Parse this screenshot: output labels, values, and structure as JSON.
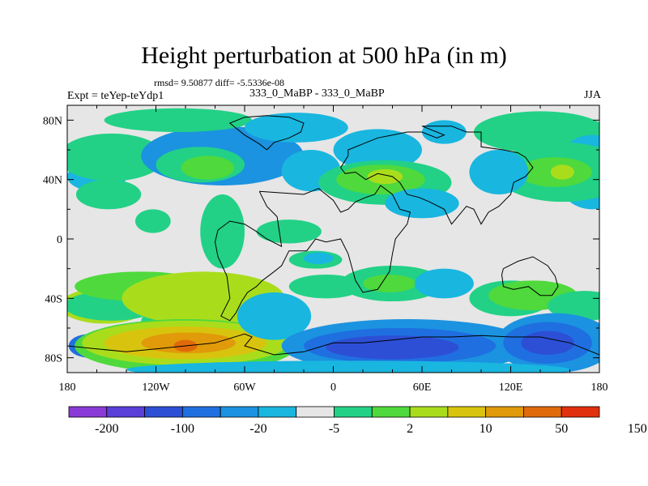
{
  "header": {
    "title": "Height perturbation at 500 hPa (in m)",
    "stats": "rmsd= 9.50877 diff= -5.5336e-08",
    "left_label": "Expt = teYep-teYdp1",
    "center_label": "333_0_MaBP - 333_0_MaBP",
    "right_label": "JJA"
  },
  "chart_data": {
    "type": "heatmap",
    "title": "Height perturbation at 500 hPa (in m)",
    "xlabel": "",
    "ylabel": "",
    "x_ticks": [
      "180",
      "120W",
      "60W",
      "0",
      "60E",
      "120E",
      "180"
    ],
    "x_tick_values": [
      -180,
      -120,
      -60,
      0,
      60,
      120,
      180
    ],
    "y_ticks": [
      "80N",
      "40N",
      "0",
      "40S",
      "80S"
    ],
    "y_tick_values": [
      80,
      40,
      0,
      -40,
      -80
    ],
    "xlim": [
      -180,
      180
    ],
    "ylim": [
      -90,
      90
    ],
    "colorbar": {
      "levels": [
        "-200",
        "-100",
        "-20",
        "-5",
        "2",
        "10",
        "50",
        "150"
      ],
      "colors": [
        "#8a3ad6",
        "#5a3fd9",
        "#2d4fd6",
        "#1f6fe0",
        "#1b93e0",
        "#19b6e0",
        "#e6e6e6",
        "#22d186",
        "#4fd93c",
        "#a9dd1c",
        "#d8c40e",
        "#e09a0a",
        "#e06a0a",
        "#e0300e"
      ]
    },
    "fields": [
      {
        "cx": -165,
        "cy": -72,
        "rx": 14,
        "ry": 8,
        "level": 3
      },
      {
        "cx": -160,
        "cy": 42,
        "rx": 20,
        "ry": 10,
        "level": 5
      },
      {
        "cx": -152,
        "cy": 30,
        "rx": 22,
        "ry": 10,
        "level": 7
      },
      {
        "cx": -150,
        "cy": 55,
        "rx": 36,
        "ry": 16,
        "level": 7
      },
      {
        "cx": -155,
        "cy": -45,
        "rx": 30,
        "ry": 12,
        "level": 9
      },
      {
        "cx": -150,
        "cy": -45,
        "rx": 32,
        "ry": 10,
        "level": 7
      },
      {
        "cx": -90,
        "cy": -55,
        "rx": 40,
        "ry": 10,
        "level": 7
      },
      {
        "cx": -130,
        "cy": -32,
        "rx": 45,
        "ry": 10,
        "level": 8
      },
      {
        "cx": -88,
        "cy": -40,
        "rx": 55,
        "ry": 18,
        "level": 9
      },
      {
        "cx": -100,
        "cy": -72,
        "rx": 75,
        "ry": 18,
        "level": 8
      },
      {
        "cx": -100,
        "cy": -70,
        "rx": 70,
        "ry": 15,
        "level": 9
      },
      {
        "cx": -100,
        "cy": -70,
        "rx": 55,
        "ry": 11,
        "level": 10
      },
      {
        "cx": -98,
        "cy": -70,
        "rx": 32,
        "ry": 7,
        "level": 11
      },
      {
        "cx": -100,
        "cy": -72,
        "rx": 8,
        "ry": 4,
        "level": 12
      },
      {
        "cx": -40,
        "cy": -52,
        "rx": 25,
        "ry": 16,
        "level": 5
      },
      {
        "cx": -75,
        "cy": 56,
        "rx": 55,
        "ry": 20,
        "level": 4
      },
      {
        "cx": -90,
        "cy": 50,
        "rx": 30,
        "ry": 12,
        "level": 7
      },
      {
        "cx": -85,
        "cy": 48,
        "rx": 18,
        "ry": 8,
        "level": 8
      },
      {
        "cx": -105,
        "cy": 80,
        "rx": 50,
        "ry": 8,
        "level": 7
      },
      {
        "cx": -25,
        "cy": 75,
        "rx": 35,
        "ry": 10,
        "level": 5
      },
      {
        "cx": -15,
        "cy": 46,
        "rx": 20,
        "ry": 14,
        "level": 5
      },
      {
        "cx": -122,
        "cy": 12,
        "rx": 12,
        "ry": 8,
        "level": 7
      },
      {
        "cx": -75,
        "cy": 5,
        "rx": 15,
        "ry": 25,
        "level": 7
      },
      {
        "cx": -30,
        "cy": 5,
        "rx": 22,
        "ry": 8,
        "level": 7
      },
      {
        "cx": -12,
        "cy": -14,
        "rx": 18,
        "ry": 6,
        "level": 7
      },
      {
        "cx": -10,
        "cy": -13,
        "rx": 10,
        "ry": 4,
        "level": 5
      },
      {
        "cx": 30,
        "cy": 60,
        "rx": 30,
        "ry": 14,
        "level": 5
      },
      {
        "cx": 35,
        "cy": 38,
        "rx": 45,
        "ry": 15,
        "level": 7
      },
      {
        "cx": 32,
        "cy": 40,
        "rx": 30,
        "ry": 10,
        "level": 8
      },
      {
        "cx": 35,
        "cy": 42,
        "rx": 12,
        "ry": 5,
        "level": 9
      },
      {
        "cx": 60,
        "cy": 24,
        "rx": 25,
        "ry": 10,
        "level": 5
      },
      {
        "cx": 75,
        "cy": 72,
        "rx": 15,
        "ry": 8,
        "level": 5
      },
      {
        "cx": 140,
        "cy": 72,
        "rx": 45,
        "ry": 14,
        "level": 7
      },
      {
        "cx": 175,
        "cy": 45,
        "rx": 25,
        "ry": 25,
        "level": 5
      },
      {
        "cx": 155,
        "cy": 45,
        "rx": 45,
        "ry": 20,
        "level": 7
      },
      {
        "cx": 150,
        "cy": 45,
        "rx": 25,
        "ry": 10,
        "level": 8
      },
      {
        "cx": 155,
        "cy": 45,
        "rx": 8,
        "ry": 5,
        "level": 9
      },
      {
        "cx": 112,
        "cy": 45,
        "rx": 20,
        "ry": 15,
        "level": 5
      },
      {
        "cx": 40,
        "cy": -30,
        "rx": 35,
        "ry": 12,
        "level": 7
      },
      {
        "cx": 38,
        "cy": -30,
        "rx": 18,
        "ry": 6,
        "level": 8
      },
      {
        "cx": 75,
        "cy": -30,
        "rx": 20,
        "ry": 10,
        "level": 5
      },
      {
        "cx": -5,
        "cy": -32,
        "rx": 25,
        "ry": 8,
        "level": 7
      },
      {
        "cx": 120,
        "cy": -40,
        "rx": 28,
        "ry": 12,
        "level": 7
      },
      {
        "cx": 135,
        "cy": -38,
        "rx": 30,
        "ry": 10,
        "level": 8
      },
      {
        "cx": 170,
        "cy": -45,
        "rx": 25,
        "ry": 10,
        "level": 7
      },
      {
        "cx": 50,
        "cy": -72,
        "rx": 85,
        "ry": 18,
        "level": 4
      },
      {
        "cx": 45,
        "cy": -72,
        "rx": 65,
        "ry": 12,
        "level": 3
      },
      {
        "cx": 40,
        "cy": -73,
        "rx": 45,
        "ry": 8,
        "level": 2
      },
      {
        "cx": 150,
        "cy": -70,
        "rx": 40,
        "ry": 20,
        "level": 4
      },
      {
        "cx": 145,
        "cy": -70,
        "rx": 30,
        "ry": 14,
        "level": 3
      },
      {
        "cx": 145,
        "cy": -70,
        "rx": 18,
        "ry": 8,
        "level": 2
      },
      {
        "cx": 10,
        "cy": -88,
        "rx": 150,
        "ry": 6,
        "level": 5
      }
    ],
    "land_outlines": [
      [
        [
          -50,
          32
        ],
        [
          -20,
          30
        ],
        [
          -10,
          34
        ],
        [
          -5,
          30
        ],
        [
          0,
          26
        ],
        [
          5,
          18
        ],
        [
          10,
          20
        ],
        [
          15,
          25
        ],
        [
          22,
          28
        ],
        [
          28,
          30
        ],
        [
          32,
          36
        ],
        [
          40,
          30
        ],
        [
          45,
          20
        ],
        [
          52,
          18
        ],
        [
          50,
          10
        ],
        [
          42,
          0
        ],
        [
          40,
          -10
        ],
        [
          38,
          -22
        ],
        [
          30,
          -34
        ],
        [
          20,
          -36
        ],
        [
          15,
          -28
        ],
        [
          10,
          -10
        ],
        [
          5,
          0
        ],
        [
          -5,
          -2
        ],
        [
          -12,
          0
        ],
        [
          -18,
          -8
        ],
        [
          -30,
          -8
        ],
        [
          -35,
          -18
        ],
        [
          -40,
          -22
        ],
        [
          -48,
          -28
        ],
        [
          -52,
          -32
        ],
        [
          -58,
          -36
        ],
        [
          -62,
          -42
        ],
        [
          -66,
          -50
        ],
        [
          -70,
          -55
        ],
        [
          -76,
          -52
        ],
        [
          -70,
          -40
        ],
        [
          -72,
          -25
        ],
        [
          -78,
          -12
        ],
        [
          -80,
          -2
        ],
        [
          -78,
          6
        ],
        [
          -70,
          12
        ],
        [
          -60,
          10
        ],
        [
          -52,
          5
        ],
        [
          -45,
          0
        ],
        [
          -35,
          -5
        ],
        [
          -38,
          15
        ],
        [
          -45,
          22
        ],
        [
          -48,
          28
        ],
        [
          -50,
          32
        ]
      ],
      [
        [
          10,
          56
        ],
        [
          10,
          60
        ],
        [
          20,
          64
        ],
        [
          30,
          68
        ],
        [
          40,
          70
        ],
        [
          50,
          72
        ],
        [
          60,
          72
        ],
        [
          70,
          68
        ],
        [
          75,
          70
        ],
        [
          70,
          72
        ],
        [
          60,
          76
        ],
        [
          80,
          76
        ],
        [
          90,
          72
        ],
        [
          100,
          72
        ],
        [
          100,
          62
        ],
        [
          115,
          60
        ],
        [
          125,
          58
        ],
        [
          130,
          55
        ],
        [
          135,
          48
        ],
        [
          130,
          42
        ],
        [
          122,
          38
        ],
        [
          120,
          30
        ],
        [
          112,
          22
        ],
        [
          105,
          18
        ],
        [
          100,
          10
        ],
        [
          95,
          20
        ],
        [
          90,
          22
        ],
        [
          80,
          10
        ],
        [
          75,
          20
        ],
        [
          65,
          25
        ],
        [
          58,
          28
        ],
        [
          50,
          30
        ],
        [
          45,
          38
        ],
        [
          40,
          42
        ],
        [
          30,
          44
        ],
        [
          22,
          40
        ],
        [
          15,
          45
        ],
        [
          8,
          44
        ],
        [
          5,
          48
        ],
        [
          10,
          56
        ]
      ],
      [
        [
          115,
          -20
        ],
        [
          125,
          -15
        ],
        [
          135,
          -12
        ],
        [
          140,
          -15
        ],
        [
          145,
          -18
        ],
        [
          150,
          -25
        ],
        [
          152,
          -32
        ],
        [
          148,
          -38
        ],
        [
          140,
          -38
        ],
        [
          132,
          -32
        ],
        [
          122,
          -34
        ],
        [
          115,
          -32
        ],
        [
          114,
          -24
        ],
        [
          115,
          -20
        ]
      ],
      [
        [
          -180,
          -72
        ],
        [
          -160,
          -74
        ],
        [
          -140,
          -76
        ],
        [
          -120,
          -74
        ],
        [
          -100,
          -72
        ],
        [
          -80,
          -70
        ],
        [
          -60,
          -64
        ],
        [
          -55,
          -66
        ],
        [
          -60,
          -72
        ],
        [
          -40,
          -78
        ],
        [
          -20,
          -76
        ],
        [
          0,
          -70
        ],
        [
          20,
          -70
        ],
        [
          40,
          -68
        ],
        [
          60,
          -66
        ],
        [
          80,
          -66
        ],
        [
          100,
          -65
        ],
        [
          120,
          -66
        ],
        [
          140,
          -66
        ],
        [
          160,
          -70
        ],
        [
          170,
          -74
        ],
        [
          180,
          -78
        ]
      ],
      [
        [
          -45,
          60
        ],
        [
          -40,
          65
        ],
        [
          -30,
          68
        ],
        [
          -22,
          72
        ],
        [
          -20,
          78
        ],
        [
          -30,
          82
        ],
        [
          -45,
          83
        ],
        [
          -60,
          82
        ],
        [
          -70,
          78
        ],
        [
          -60,
          70
        ],
        [
          -50,
          64
        ],
        [
          -45,
          60
        ]
      ]
    ]
  }
}
